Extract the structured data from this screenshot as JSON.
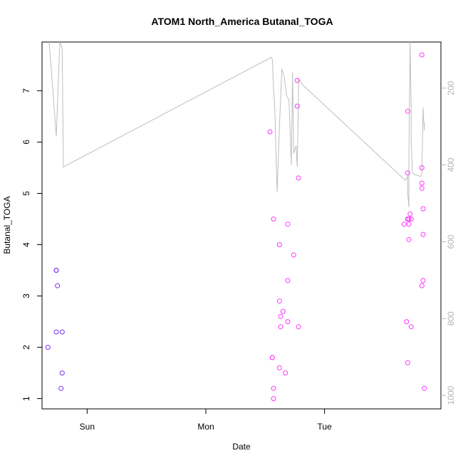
{
  "chart_data": {
    "type": "scatter",
    "title": "ATOM1 North_America Butanal_TOGA",
    "xlabel": "Date",
    "ylabel": "Butanal_TOGA",
    "x_ticks": [
      "Sun",
      "Mon",
      "Tue"
    ],
    "x_tick_days": [
      1,
      2,
      3
    ],
    "xlim_days": [
      0.62,
      3.98
    ],
    "y_ticks": [
      1,
      2,
      3,
      4,
      5,
      6,
      7
    ],
    "ylim": [
      0.8,
      7.95
    ],
    "right_axis": {
      "ticks": [
        200,
        400,
        600,
        800,
        1000
      ],
      "ylim_inverted": [
        1035,
        80
      ]
    },
    "grid": false,
    "legend": "none",
    "colors": {
      "points_early": "#7f2ff0",
      "points_late": "#ff33ff",
      "line": "#bebebe",
      "right_axis": "#b3b3b3"
    },
    "series": [
      {
        "color_key": "points_early",
        "x_days": [
          0.67,
          0.74,
          0.74,
          0.75,
          0.74,
          0.79,
          0.79,
          0.78
        ],
        "values": [
          2.0,
          3.5,
          3.5,
          3.2,
          2.3,
          2.3,
          1.5,
          1.2
        ]
      },
      {
        "color_key": "points_late",
        "x_days": [
          2.54,
          2.57,
          2.56,
          2.56,
          2.57,
          2.57,
          2.62,
          2.62,
          2.63,
          2.63,
          2.62,
          2.65,
          2.67,
          2.69,
          2.69,
          2.69,
          2.74,
          2.77,
          2.77,
          2.78,
          2.78,
          3.67,
          3.69,
          3.7,
          3.7,
          3.7,
          3.71,
          3.71,
          3.71,
          3.72,
          3.73,
          3.7,
          3.7,
          3.73,
          3.82,
          3.82,
          3.82,
          3.82,
          3.83,
          3.83,
          3.83,
          3.82,
          3.84
        ],
        "values": [
          6.2,
          4.5,
          1.8,
          1.8,
          1.2,
          1.0,
          4.0,
          2.9,
          2.6,
          2.4,
          1.6,
          2.7,
          1.5,
          4.4,
          3.3,
          2.5,
          3.8,
          7.2,
          6.7,
          5.3,
          2.4,
          4.4,
          2.5,
          5.4,
          6.6,
          4.5,
          4.4,
          4.1,
          4.5,
          4.6,
          2.4,
          1.7,
          4.5,
          4.5,
          7.7,
          5.5,
          5.2,
          5.1,
          4.7,
          4.2,
          3.3,
          3.2,
          1.2
        ]
      },
      {
        "kind": "line",
        "axis": "right",
        "color_key": "line",
        "x_days": [
          0.68,
          0.71,
          0.74,
          0.77,
          0.79,
          0.8,
          2.55,
          2.56,
          2.57,
          2.58,
          2.6,
          2.62,
          2.64,
          2.66,
          2.68,
          2.7,
          2.72,
          2.73,
          2.74,
          2.76,
          2.77,
          2.78,
          2.78,
          2.81,
          3.68,
          3.7,
          3.7,
          3.71,
          3.71,
          3.72,
          3.73,
          3.73,
          3.74,
          3.75,
          3.76,
          3.81,
          3.82,
          3.83,
          3.83,
          3.84,
          3.84
        ],
        "values": [
          80,
          200,
          325,
          80,
          95,
          405,
          120,
          125,
          200,
          250,
          470,
          300,
          150,
          170,
          220,
          230,
          400,
          160,
          370,
          350,
          405,
          230,
          175,
          190,
          440,
          430,
          470,
          510,
          400,
          80,
          260,
          340,
          420,
          423,
          425,
          430,
          420,
          250,
          255,
          310,
          290
        ]
      }
    ]
  }
}
